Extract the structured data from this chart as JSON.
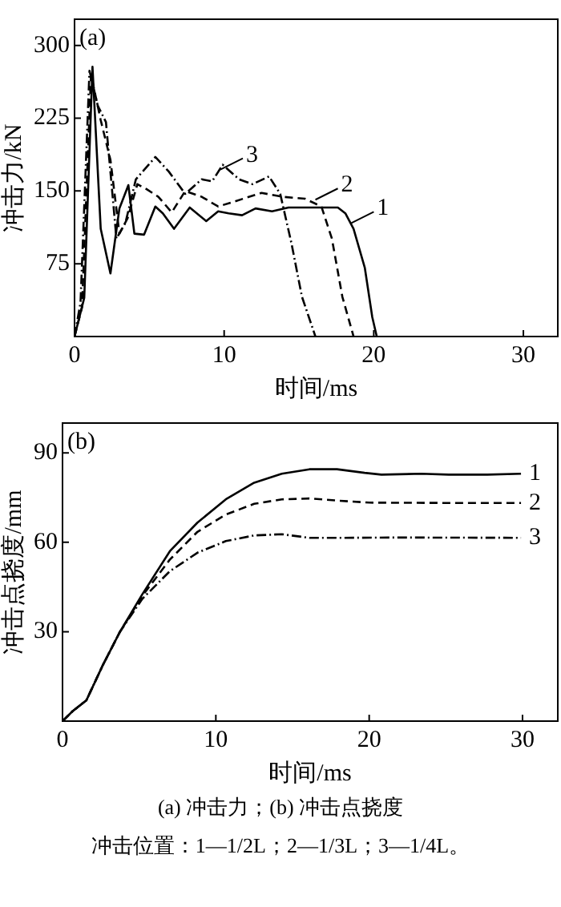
{
  "chart_data": [
    {
      "type": "line",
      "ylabel": "冲击力/kN",
      "xlabel": "时间/ms",
      "xlim": [
        0,
        32.3
      ],
      "ylim": [
        0,
        327
      ],
      "xticks": [
        0,
        10,
        20,
        30
      ],
      "yticks": [
        75,
        150,
        225,
        300
      ],
      "grid": false,
      "legend": false,
      "marker": "none",
      "annotations": [
        "(a)",
        {
          "text": "1",
          "x": 18.5,
          "y": 117
        },
        {
          "text": "2",
          "x": 16.1,
          "y": 141
        },
        {
          "text": "3",
          "x": 9.75,
          "y": 172
        }
      ],
      "series": [
        {
          "color": "#000000",
          "line_style": "solid",
          "x": [
            0,
            0.65,
            1.2,
            1.75,
            2.4,
            3.0,
            3.6,
            4.0,
            4.65,
            5.4,
            5.9,
            6.65,
            7.7,
            8.8,
            9.6,
            10.3,
            11.2,
            12.1,
            13.2,
            14.3,
            16.1,
            17.6,
            18.1,
            18.65,
            19.4,
            19.9,
            20.2
          ],
          "values": [
            0,
            40,
            278,
            111,
            65,
            132,
            156,
            106,
            105,
            134,
            127,
            111,
            133,
            119,
            129,
            127,
            125,
            132,
            129,
            133,
            133,
            133,
            127,
            111,
            71,
            20,
            0
          ]
        },
        {
          "color": "#000000",
          "line_style": "dashed",
          "x": [
            0,
            0.5,
            1.1,
            1.75,
            2.4,
            3.0,
            3.55,
            4.2,
            4.8,
            5.6,
            6.5,
            7.4,
            8.5,
            9.6,
            10.65,
            12.5,
            13.9,
            15.4,
            16.5,
            17.2,
            17.9,
            18.65
          ],
          "values": [
            0,
            30,
            270,
            223,
            182,
            106,
            122,
            157,
            152,
            144,
            128,
            150,
            144,
            134,
            139,
            148,
            144,
            142,
            134,
            101,
            41,
            0
          ]
        },
        {
          "color": "#000000",
          "line_style": "dashdot",
          "x": [
            0,
            0.4,
            1.0,
            1.55,
            2.1,
            2.8,
            3.4,
            4.1,
            5.4,
            6.3,
            7.4,
            8.5,
            9.2,
            9.9,
            11.0,
            11.9,
            13.0,
            13.75,
            14.5,
            15.2,
            16.1
          ],
          "values": [
            0,
            35,
            274,
            238,
            221,
            101,
            117,
            162,
            185,
            170,
            147,
            162,
            160,
            177,
            162,
            157,
            165,
            147,
            96,
            41,
            0
          ]
        }
      ]
    },
    {
      "type": "line",
      "ylabel": "冲击点挠度/mm",
      "xlabel": "时间/ms",
      "xlim": [
        0,
        32.3
      ],
      "ylim": [
        0,
        100
      ],
      "xticks": [
        0,
        10,
        20,
        30
      ],
      "yticks": [
        30,
        60,
        90
      ],
      "grid": false,
      "legend": false,
      "marker": "none",
      "annotations": [
        "(b)",
        "(a) 冲击力；(b) 冲击点挠度",
        "冲击位置：1—1/2L；2—1/3L；3—1/4L。"
      ],
      "series": [
        {
          "name": "1",
          "color": "#000000",
          "line_style": "solid",
          "x": [
            0,
            0.65,
            1.56,
            2.65,
            3.75,
            5.2,
            7,
            8.8,
            10.65,
            12.5,
            14.3,
            16.1,
            17.9,
            19.7,
            20.8,
            23.4,
            25.2,
            27.7,
            29.9
          ],
          "values": [
            0,
            3.3,
            7,
            19,
            30,
            42.5,
            57,
            66.6,
            74.4,
            80,
            83,
            84.5,
            84.5,
            83.3,
            82.7,
            83,
            82.7,
            82.7,
            83
          ]
        },
        {
          "name": "2",
          "color": "#000000",
          "line_style": "dashed",
          "x": [
            0,
            0.65,
            1.56,
            2.65,
            3.75,
            5.2,
            7,
            8.8,
            10.65,
            12.5,
            14.3,
            16.1,
            17.9,
            20,
            25,
            29.9
          ],
          "values": [
            0,
            3.3,
            7,
            19,
            30,
            42,
            54.2,
            63.5,
            69.3,
            72.9,
            74.4,
            74.7,
            74,
            73.3,
            73.2,
            73.2
          ]
        },
        {
          "name": "3",
          "color": "#000000",
          "line_style": "dashdot",
          "x": [
            0,
            0.65,
            1.56,
            2.65,
            3.75,
            5.2,
            7,
            8.8,
            10.65,
            12.5,
            14.3,
            16.1,
            18,
            22,
            29.9
          ],
          "values": [
            0,
            3.3,
            7,
            19,
            30,
            41,
            50.3,
            56.5,
            60.4,
            62.3,
            62.7,
            61.5,
            61.5,
            61.6,
            61.5
          ]
        }
      ]
    }
  ]
}
